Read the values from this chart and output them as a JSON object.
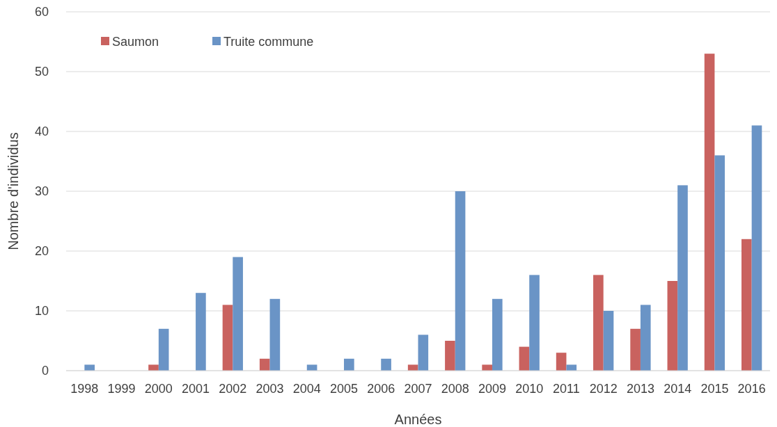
{
  "chart_data": {
    "type": "bar",
    "xlabel": "Années",
    "ylabel": "Nombre d'individus",
    "categories": [
      "1998",
      "1999",
      "2000",
      "2001",
      "2002",
      "2003",
      "2004",
      "2005",
      "2006",
      "2007",
      "2008",
      "2009",
      "2010",
      "2011",
      "2012",
      "2013",
      "2014",
      "2015",
      "2016"
    ],
    "series": [
      {
        "name": "Saumon",
        "color": "#c9625f",
        "values": [
          0,
          0,
          1,
          0,
          11,
          2,
          0,
          0,
          0,
          1,
          5,
          1,
          4,
          3,
          16,
          7,
          15,
          53,
          22
        ]
      },
      {
        "name": "Truite commune",
        "color": "#6a94c6",
        "values": [
          1,
          0,
          7,
          13,
          19,
          12,
          1,
          2,
          2,
          6,
          30,
          12,
          16,
          1,
          10,
          11,
          31,
          36,
          41
        ]
      }
    ],
    "ylim": [
      0,
      60
    ],
    "yticks": [
      0,
      10,
      20,
      30,
      40,
      50,
      60
    ],
    "grid": "y",
    "legend": "top left"
  }
}
